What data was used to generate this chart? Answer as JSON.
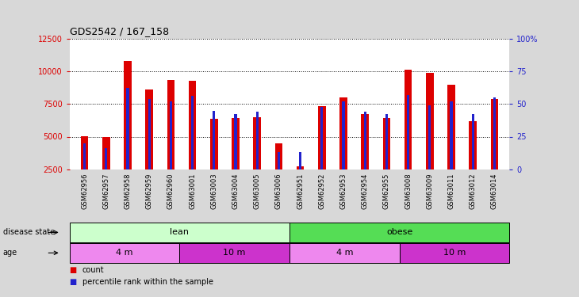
{
  "title": "GDS2542 / 167_158",
  "samples": [
    "GSM62956",
    "GSM62957",
    "GSM62958",
    "GSM62959",
    "GSM62960",
    "GSM63001",
    "GSM63003",
    "GSM63004",
    "GSM63005",
    "GSM63006",
    "GSM62951",
    "GSM62952",
    "GSM62953",
    "GSM62954",
    "GSM62955",
    "GSM63008",
    "GSM63009",
    "GSM63011",
    "GSM63012",
    "GSM63014"
  ],
  "counts": [
    5050,
    4950,
    10800,
    8600,
    9350,
    9300,
    6350,
    6450,
    6500,
    4500,
    2700,
    7350,
    8000,
    6750,
    6450,
    10100,
    9850,
    8950,
    6200,
    7900
  ],
  "percentiles": [
    20,
    16,
    62,
    54,
    52,
    56,
    45,
    42,
    44,
    13,
    13,
    48,
    52,
    44,
    42,
    57,
    49,
    52,
    42,
    55
  ],
  "ylim_left": [
    2500,
    12500
  ],
  "ylim_right": [
    0,
    100
  ],
  "yticks_left": [
    2500,
    5000,
    7500,
    10000,
    12500
  ],
  "yticks_right": [
    0,
    25,
    50,
    75,
    100
  ],
  "bar_color": "#dd0000",
  "percentile_color": "#2222cc",
  "grid_color": "#000000",
  "background_color": "#d8d8d8",
  "plot_bg": "#ffffff",
  "disease_state_lean_color": "#ccffcc",
  "disease_state_obese_color": "#55dd55",
  "age_4m_color": "#ee88ee",
  "age_10m_color": "#cc33cc",
  "lean_count": 10,
  "obese_count": 10,
  "lean_4m_count": 5,
  "lean_10m_count": 5,
  "obese_4m_count": 5,
  "obese_10m_count": 5,
  "title_fontsize": 9,
  "tick_fontsize": 7,
  "sample_fontsize": 6,
  "annotation_fontsize": 8
}
